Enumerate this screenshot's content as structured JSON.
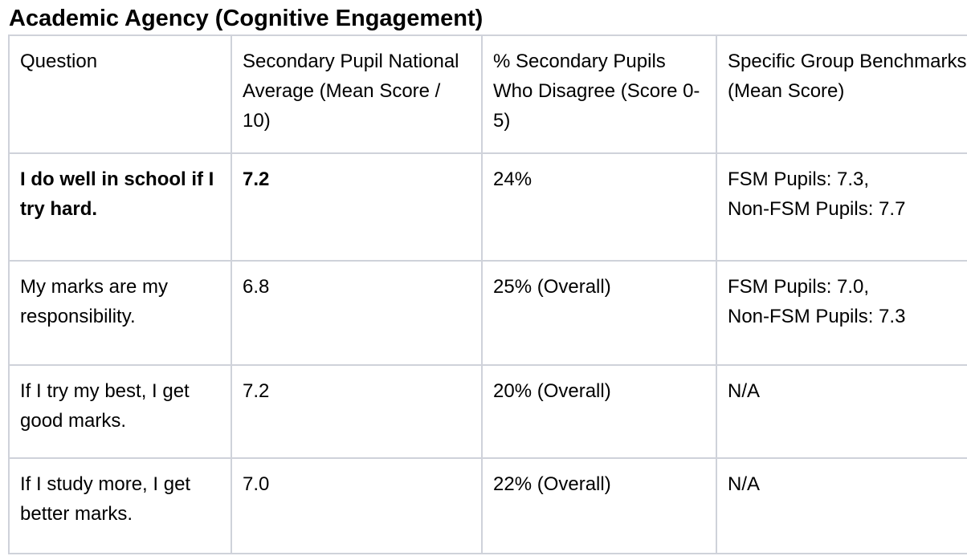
{
  "title": "Academic Agency (Cognitive Engagement)",
  "table": {
    "headers": [
      "Question",
      "Secondary Pupil National Average (Mean Score / 10)",
      "% Secondary Pupils Who Disagree (Score 0-5)",
      "Specific Group Benchmarks (Mean Score)"
    ],
    "rows": [
      {
        "question": "I do well in school if I try hard.",
        "average": "7.2",
        "disagree": "24%",
        "benchmarks": [
          "FSM Pupils: 7.3,",
          "Non-FSM Pupils: 7.7"
        ]
      },
      {
        "question": "My marks are my responsibility.",
        "average": "6.8",
        "disagree": "25% (Overall)",
        "benchmarks": [
          "FSM Pupils: 7.0,",
          "Non-FSM Pupils: 7.3"
        ]
      },
      {
        "question": "If I try my best, I get good marks.",
        "average": "7.2",
        "disagree": "20% (Overall)",
        "benchmarks": [
          "N/A"
        ]
      },
      {
        "question": "If I study more, I get better marks.",
        "average": "7.0",
        "disagree": "22% (Overall)",
        "benchmarks": [
          "N/A"
        ]
      }
    ]
  }
}
